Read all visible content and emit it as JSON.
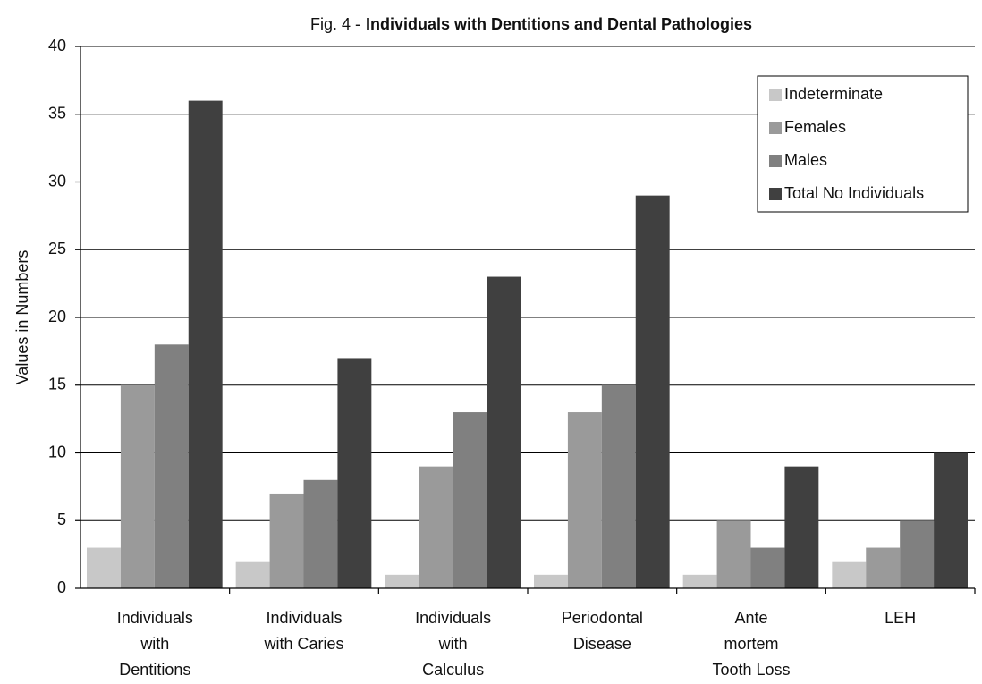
{
  "chart_data": {
    "type": "bar",
    "title": [
      "Fig. 4 -",
      "Individuals with Dentitions and Dental Pathologies"
    ],
    "y_label": "Values in Numbers",
    "categories": [
      [
        "Individuals",
        "with",
        "Dentitions"
      ],
      [
        "Individuals",
        "with Caries"
      ],
      [
        "Individuals",
        "with",
        "Calculus"
      ],
      [
        "Periodontal",
        "Disease"
      ],
      [
        "Ante",
        "mortem",
        "Tooth Loss"
      ],
      [
        "LEH"
      ]
    ],
    "series": [
      {
        "name": "Indeterminate",
        "color": "#c8c8c8",
        "values": [
          3,
          2,
          1,
          1,
          1,
          2
        ]
      },
      {
        "name": "Females",
        "color": "#9a9a9a",
        "values": [
          15,
          7,
          9,
          13,
          5,
          3
        ]
      },
      {
        "name": "Males",
        "color": "#808080",
        "values": [
          18,
          8,
          13,
          15,
          3,
          5
        ]
      },
      {
        "name": "Total No Individuals",
        "color": "#404040",
        "values": [
          36,
          17,
          23,
          29,
          9,
          10
        ]
      }
    ],
    "ylim": [
      0,
      40
    ],
    "yticks": [
      0,
      5,
      10,
      15,
      20,
      25,
      30,
      35,
      40
    ],
    "grid": true,
    "legend": "top-right"
  }
}
